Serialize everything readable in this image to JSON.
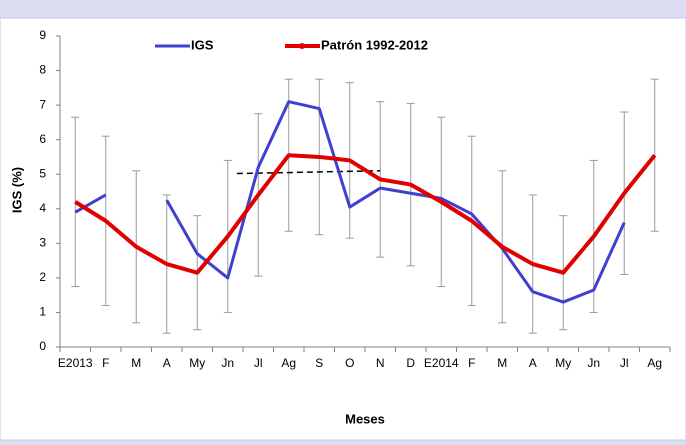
{
  "chart_data": {
    "type": "line",
    "y_label": "IGS (%)",
    "x_label": "Meses",
    "categories": [
      "E2013",
      "F",
      "M",
      "A",
      "My",
      "Jn",
      "Jl",
      "Ag",
      "S",
      "O",
      "N",
      "D",
      "E2014",
      "F",
      "M",
      "A",
      "My",
      "Jn",
      "Jl",
      "Ag"
    ],
    "series": [
      {
        "name": "IGS",
        "color": "#4040d0",
        "values": [
          3.9,
          4.4,
          null,
          4.25,
          2.7,
          2.0,
          5.2,
          7.1,
          6.9,
          4.05,
          4.6,
          4.45,
          4.3,
          3.85,
          2.85,
          1.6,
          1.3,
          1.65,
          3.6,
          null
        ]
      },
      {
        "name": "Patrón 1992-2012",
        "color": "#e00000",
        "values": [
          4.2,
          3.65,
          2.9,
          2.4,
          2.15,
          3.2,
          4.4,
          5.55,
          5.5,
          5.4,
          4.85,
          4.7,
          4.2,
          3.65,
          2.9,
          2.4,
          2.15,
          3.2,
          4.45,
          5.55
        ],
        "error": [
          2.45,
          2.45,
          2.2,
          2.0,
          1.65,
          2.2,
          2.35,
          2.2,
          2.25,
          2.25,
          2.25,
          2.35,
          2.45,
          2.45,
          2.2,
          2.0,
          1.65,
          2.2,
          2.35,
          2.2
        ]
      }
    ],
    "dashed_line": {
      "categories": [
        "Jn",
        "N"
      ],
      "values": [
        5.02,
        5.1
      ]
    },
    "ylim": [
      0,
      9
    ],
    "yticks": [
      0,
      1,
      2,
      3,
      4,
      5,
      6,
      7,
      8,
      9
    ],
    "legend": "top"
  }
}
